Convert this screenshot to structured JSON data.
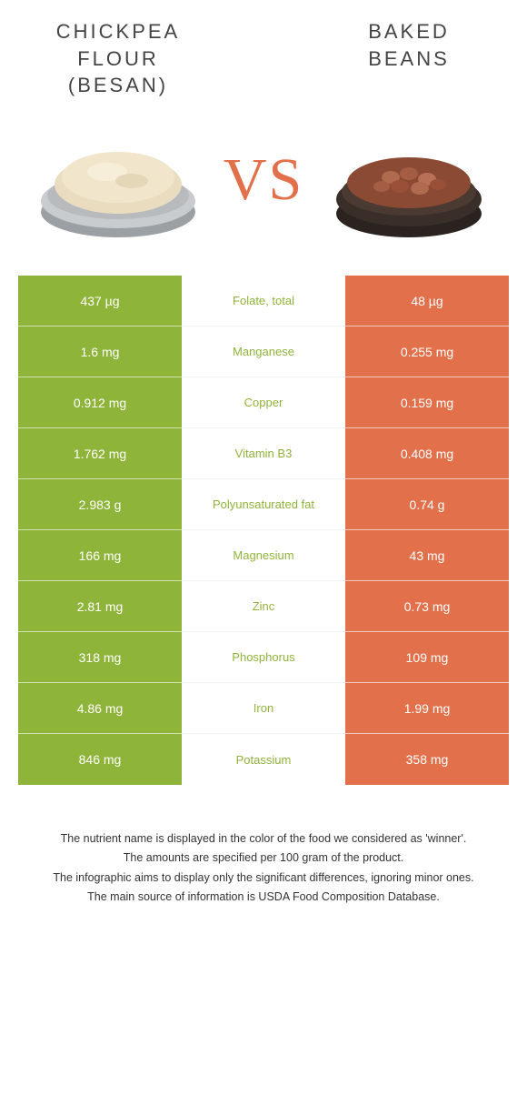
{
  "colors": {
    "left": "#8fb43a",
    "right": "#e2704a",
    "vs": "#e2704a",
    "background": "#ffffff",
    "text": "#333333",
    "cell_text": "#ffffff"
  },
  "header": {
    "left_title_line1": "CHICKPEA",
    "left_title_line2": "FLOUR",
    "left_title_line3": "(BESAN)",
    "right_title_line1": "BAKED",
    "right_title_line2": "BEANS",
    "vs_label": "VS"
  },
  "rows": [
    {
      "left": "437 µg",
      "label": "Folate, total",
      "right": "48 µg",
      "winner": "left"
    },
    {
      "left": "1.6 mg",
      "label": "Manganese",
      "right": "0.255 mg",
      "winner": "left"
    },
    {
      "left": "0.912 mg",
      "label": "Copper",
      "right": "0.159 mg",
      "winner": "left"
    },
    {
      "left": "1.762 mg",
      "label": "Vitamin B3",
      "right": "0.408 mg",
      "winner": "left"
    },
    {
      "left": "2.983 g",
      "label": "Polyunsaturated fat",
      "right": "0.74 g",
      "winner": "left"
    },
    {
      "left": "166 mg",
      "label": "Magnesium",
      "right": "43 mg",
      "winner": "left"
    },
    {
      "left": "2.81 mg",
      "label": "Zinc",
      "right": "0.73 mg",
      "winner": "left"
    },
    {
      "left": "318 mg",
      "label": "Phosphorus",
      "right": "109 mg",
      "winner": "left"
    },
    {
      "left": "4.86 mg",
      "label": "Iron",
      "right": "1.99 mg",
      "winner": "left"
    },
    {
      "left": "846 mg",
      "label": "Potassium",
      "right": "358 mg",
      "winner": "left"
    }
  ],
  "footer": {
    "line1": "The nutrient name is displayed in the color of the food we considered as 'winner'.",
    "line2": "The amounts are specified per 100 gram of the product.",
    "line3": "The infographic aims to display only the significant differences, ignoring minor ones.",
    "line4": "The main source of information is USDA Food Composition Database."
  }
}
